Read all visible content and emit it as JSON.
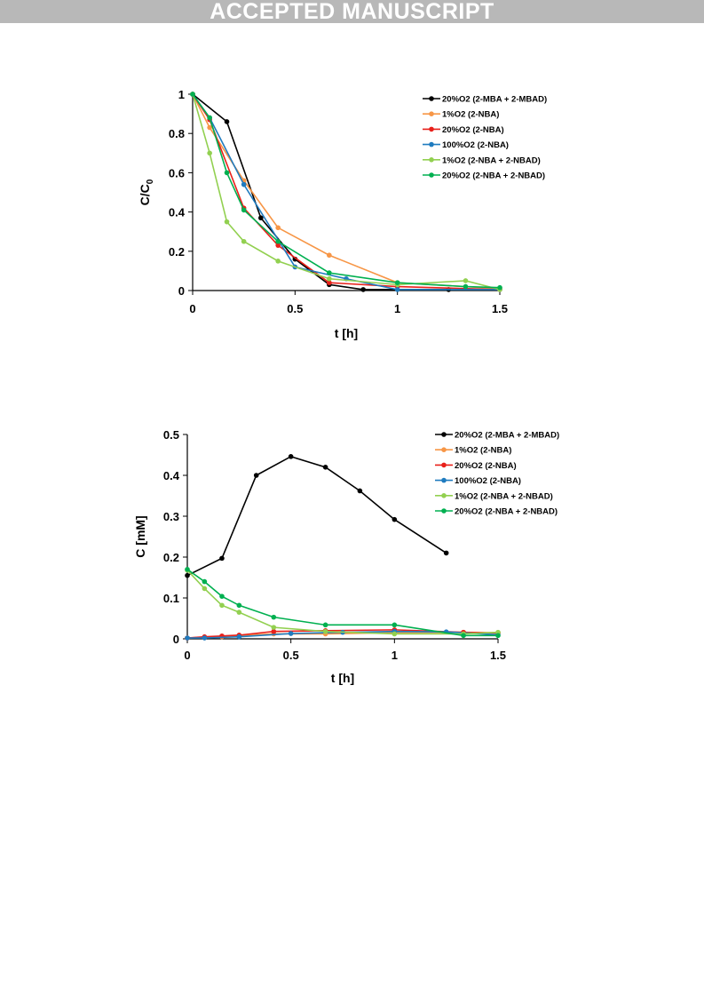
{
  "header": {
    "banner": "ACCEPTED MANUSCRIPT"
  },
  "chart_data": [
    {
      "type": "line",
      "xlabel": "t [h]",
      "ylabel_main": "C/C",
      "ylabel_sub": "0",
      "xlim": [
        0,
        1.5
      ],
      "ylim": [
        0,
        1
      ],
      "xticks": [
        "0",
        "0.5",
        "1",
        "1.5"
      ],
      "yticks": [
        "0",
        "0.2",
        "0.4",
        "0.6",
        "0.8",
        "1"
      ],
      "legend_position": "top-right",
      "series": [
        {
          "name": "20%O2 (2-MBA + 2-MBAD)",
          "color": "#000000",
          "x": [
            0,
            0.167,
            0.333,
            0.5,
            0.667,
            0.833,
            1.25
          ],
          "y": [
            1,
            0.86,
            0.37,
            0.16,
            0.03,
            0.005,
            0.005
          ]
        },
        {
          "name": "1%O2 (2-NBA)",
          "color": "#f79646",
          "x": [
            0,
            0.083,
            0.25,
            0.417,
            0.667,
            1.0,
            1.5
          ],
          "y": [
            1,
            0.83,
            0.56,
            0.32,
            0.18,
            0.04,
            0.01
          ]
        },
        {
          "name": "20%O2 (2-NBA)",
          "color": "#e8201a",
          "x": [
            0,
            0.083,
            0.25,
            0.417,
            0.667,
            1.0,
            1.5
          ],
          "y": [
            1,
            0.87,
            0.42,
            0.23,
            0.04,
            0.02,
            0.005
          ]
        },
        {
          "name": "100%O2 (2-NBA)",
          "color": "#1f7bbf",
          "x": [
            0,
            0.083,
            0.25,
            0.5,
            0.75,
            1.0,
            1.5
          ],
          "y": [
            1,
            0.88,
            0.54,
            0.12,
            0.06,
            0.005,
            0.005
          ]
        },
        {
          "name": "1%O2 (2-NBA + 2-NBAD)",
          "color": "#92d050",
          "x": [
            0,
            0.083,
            0.167,
            0.25,
            0.417,
            0.667,
            1.0,
            1.333,
            1.5
          ],
          "y": [
            1,
            0.7,
            0.35,
            0.25,
            0.15,
            0.06,
            0.03,
            0.05,
            0.005
          ]
        },
        {
          "name": "20%O2 (2-NBA + 2-NBAD)",
          "color": "#00b050",
          "x": [
            0,
            0.083,
            0.167,
            0.25,
            0.417,
            0.667,
            1.0,
            1.333,
            1.5
          ],
          "y": [
            1,
            0.88,
            0.6,
            0.41,
            0.25,
            0.09,
            0.04,
            0.02,
            0.015
          ]
        }
      ]
    },
    {
      "type": "line",
      "xlabel": "t [h]",
      "ylabel_main": "C [mM]",
      "ylabel_sub": "",
      "xlim": [
        0,
        1.5
      ],
      "ylim": [
        0,
        0.5
      ],
      "xticks": [
        "0",
        "0.5",
        "1",
        "1.5"
      ],
      "yticks": [
        "0",
        "0.1",
        "0.2",
        "0.3",
        "0.4",
        "0.5"
      ],
      "legend_position": "top-right",
      "series": [
        {
          "name": "20%O2 (2-MBA + 2-MBAD)",
          "color": "#000000",
          "x": [
            0,
            0.167,
            0.333,
            0.5,
            0.667,
            0.833,
            1.0,
            1.25
          ],
          "y": [
            0.155,
            0.197,
            0.4,
            0.446,
            0.42,
            0.362,
            0.292,
            0.21
          ]
        },
        {
          "name": "1%O2 (2-NBA)",
          "color": "#f79646",
          "x": [
            0,
            0.083,
            0.167,
            0.25,
            0.417,
            0.667,
            1.0,
            1.333,
            1.5
          ],
          "y": [
            0.002,
            0.004,
            0.005,
            0.008,
            0.012,
            0.012,
            0.015,
            0.016,
            0.015
          ]
        },
        {
          "name": "20%O2 (2-NBA)",
          "color": "#e8201a",
          "x": [
            0,
            0.083,
            0.167,
            0.25,
            0.417,
            0.667,
            1.0,
            1.333,
            1.5
          ],
          "y": [
            0.002,
            0.005,
            0.007,
            0.009,
            0.018,
            0.02,
            0.022,
            0.016,
            0.014
          ]
        },
        {
          "name": "100%O2 (2-NBA)",
          "color": "#1f7bbf",
          "x": [
            0,
            0.083,
            0.25,
            0.5,
            0.75,
            1.0,
            1.25,
            1.5
          ],
          "y": [
            0.002,
            0.002,
            0.005,
            0.013,
            0.016,
            0.018,
            0.017,
            0.01
          ]
        },
        {
          "name": "1%O2 (2-NBA + 2-NBAD)",
          "color": "#92d050",
          "x": [
            0,
            0.083,
            0.167,
            0.25,
            0.417,
            0.667,
            1.0,
            1.333,
            1.5
          ],
          "y": [
            0.168,
            0.123,
            0.082,
            0.065,
            0.028,
            0.018,
            0.012,
            0.012,
            0.016
          ]
        },
        {
          "name": "20%O2 (2-NBA + 2-NBAD)",
          "color": "#00b050",
          "x": [
            0,
            0.083,
            0.167,
            0.25,
            0.417,
            0.667,
            1.0,
            1.333,
            1.5
          ],
          "y": [
            0.17,
            0.14,
            0.104,
            0.082,
            0.053,
            0.034,
            0.034,
            0.008,
            0.008
          ]
        }
      ]
    }
  ]
}
